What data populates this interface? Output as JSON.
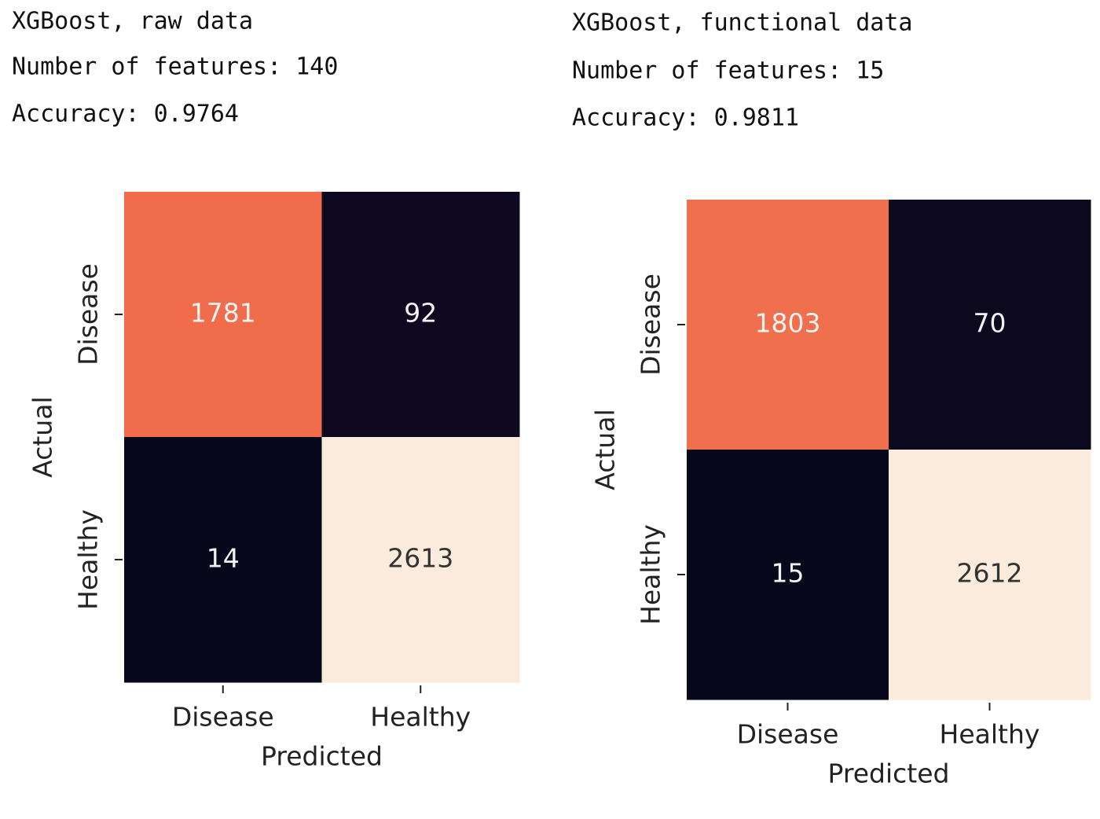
{
  "chart_data": [
    {
      "type": "heatmap",
      "title": "XGBoost, raw data",
      "subtitle_lines": [
        "Number of features:  140",
        "Accuracy: 0.9764"
      ],
      "x_categories": [
        "Disease",
        "Healthy"
      ],
      "y_categories": [
        "Disease",
        "Healthy"
      ],
      "values": [
        [
          1781,
          92
        ],
        [
          14,
          2613
        ]
      ],
      "xlabel": "Predicted",
      "ylabel": "Actual",
      "colormap": "rocket"
    },
    {
      "type": "heatmap",
      "title": "XGBoost, functional data",
      "subtitle_lines": [
        "Number of features:  15",
        "Accuracy: 0.9811"
      ],
      "x_categories": [
        "Disease",
        "Healthy"
      ],
      "y_categories": [
        "Disease",
        "Healthy"
      ],
      "values": [
        [
          1803,
          70
        ],
        [
          15,
          2612
        ]
      ],
      "xlabel": "Predicted",
      "ylabel": "Actual",
      "colormap": "rocket"
    }
  ]
}
